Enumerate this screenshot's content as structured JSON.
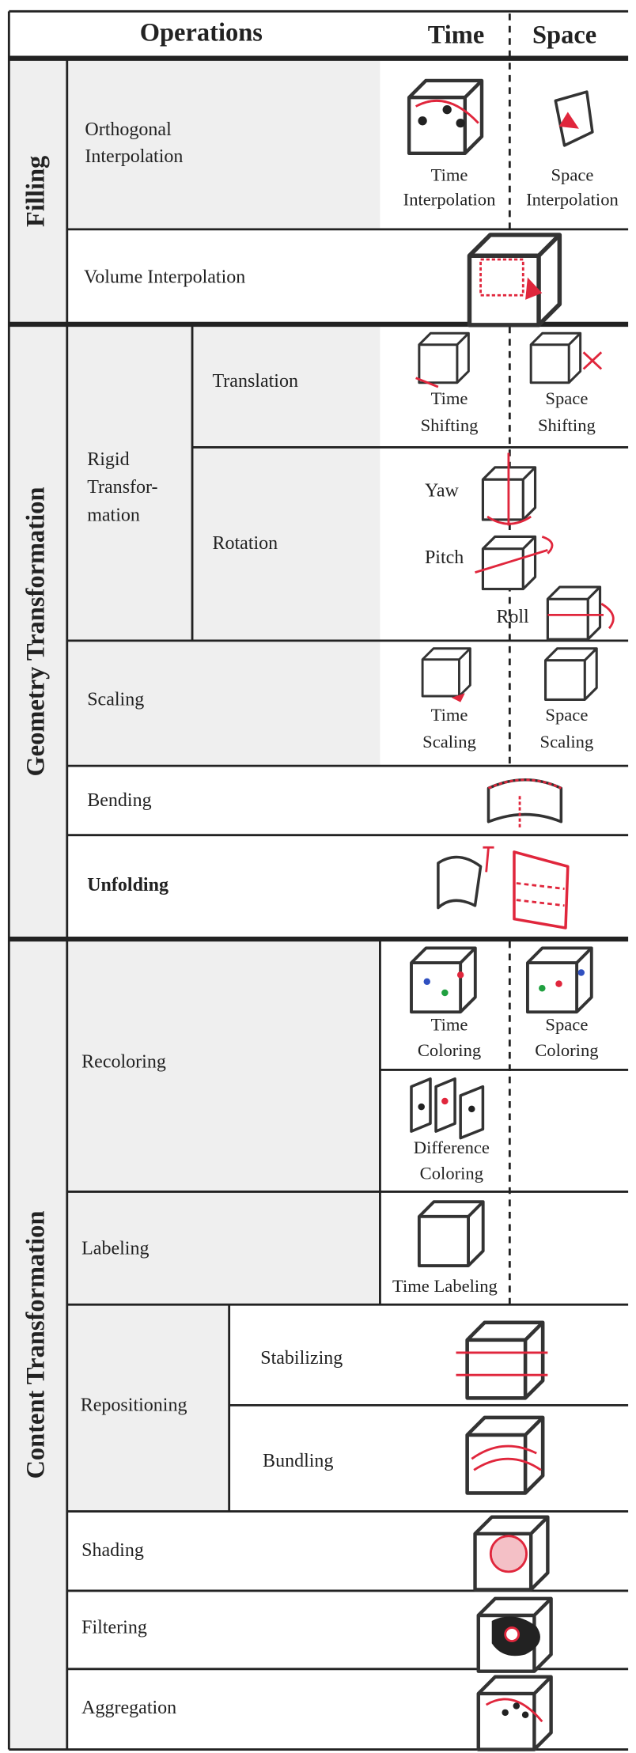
{
  "header": {
    "operations": "Operations",
    "time": "Time",
    "space": "Space"
  },
  "filling": {
    "label": "Filling",
    "orthogonal": {
      "label": [
        "Orthogonal",
        "Interpolation"
      ],
      "time": [
        "Time",
        "Interpolation"
      ],
      "space": [
        "Space",
        "Interpolation"
      ]
    },
    "volume": {
      "label": "Volume  Interpolation"
    }
  },
  "geometry": {
    "label": "Geometry Transformation",
    "rigid": {
      "label": [
        "Rigid",
        "Transfor-",
        "mation"
      ],
      "translation": {
        "label": "Translation",
        "time": [
          "Time",
          "Shifting"
        ],
        "space": [
          "Space",
          "Shifting"
        ]
      },
      "rotation": {
        "label": "Rotation",
        "yaw": "Yaw",
        "pitch": "Pitch",
        "roll": "Roll"
      }
    },
    "scaling": {
      "label": "Scaling",
      "time": [
        "Time",
        "Scaling"
      ],
      "space": [
        "Space",
        "Scaling"
      ]
    },
    "bending": {
      "label": "Bending"
    },
    "unfolding": {
      "label": "Unfolding"
    }
  },
  "content": {
    "label": "Content Transformation",
    "recoloring": {
      "label": "Recoloring",
      "time": [
        "Time",
        "Coloring"
      ],
      "space": [
        "Space",
        "Coloring"
      ],
      "difference": [
        "Difference",
        "Coloring"
      ]
    },
    "labeling": {
      "label": "Labeling",
      "time": "Time Labeling"
    },
    "repositioning": {
      "label": "Repositioning",
      "stabilizing": "Stabilizing",
      "bundling": "Bundling"
    },
    "shading": {
      "label": "Shading"
    },
    "filtering": {
      "label": "Filtering"
    },
    "aggregation": {
      "label": "Aggregation"
    }
  }
}
